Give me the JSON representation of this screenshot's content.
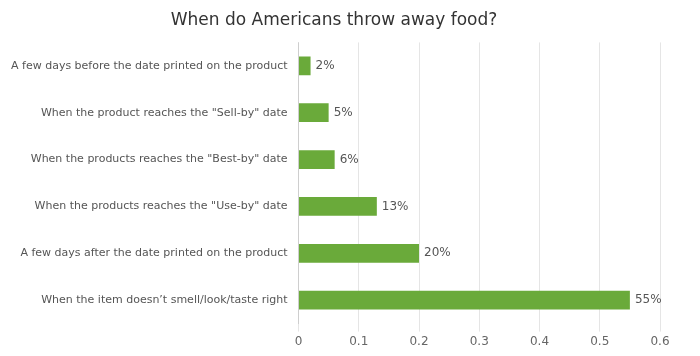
{
  "chart_data": {
    "type": "bar",
    "orientation": "horizontal",
    "title": "When do Americans throw away food?",
    "categories": [
      "When the item doesn’t smell/look/taste right",
      "A few days after the date printed on the product",
      "When the products reaches the \"Use-by\" date",
      "When the products reaches the \"Best-by\" date",
      "When the product reaches the \"Sell-by\" date",
      "A few days before the date printed on the product"
    ],
    "values": [
      0.55,
      0.2,
      0.13,
      0.06,
      0.05,
      0.02
    ],
    "value_labels": [
      "55%",
      "20%",
      "13%",
      "6%",
      "5%",
      "2%"
    ],
    "data_labels": true,
    "color": "#6aaa3a",
    "xlim": [
      0,
      0.6
    ],
    "xticks": [
      0,
      0.1,
      0.2,
      0.3,
      0.4,
      0.5,
      0.6
    ],
    "grid": true
  }
}
